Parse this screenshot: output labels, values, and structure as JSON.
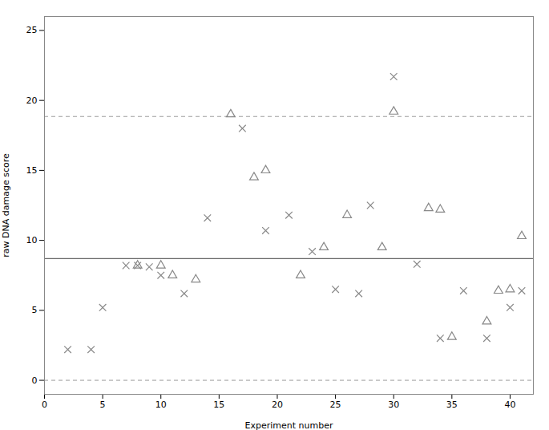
{
  "chart_data": {
    "type": "scatter",
    "xlabel": "Experiment number",
    "ylabel": "raw DNA damage score",
    "xlim": [
      0,
      42
    ],
    "ylim": [
      -1,
      26
    ],
    "xticks": [
      0,
      5,
      10,
      15,
      20,
      25,
      30,
      35,
      40
    ],
    "yticks": [
      0,
      5,
      10,
      15,
      20,
      25
    ],
    "grid": false,
    "series": [
      {
        "marker": "x",
        "color": "#888888",
        "x": [
          2,
          4,
          5,
          7,
          8,
          9,
          10,
          12,
          14,
          17,
          19,
          21,
          23,
          25,
          27,
          28,
          30,
          32,
          34,
          36,
          38,
          40,
          41
        ],
        "y": [
          2.2,
          2.2,
          5.2,
          8.2,
          8.2,
          8.1,
          7.5,
          6.2,
          11.6,
          18.0,
          10.7,
          11.8,
          9.2,
          6.5,
          6.2,
          12.5,
          21.7,
          8.3,
          3.0,
          6.4,
          3.0,
          5.2,
          6.4
        ]
      },
      {
        "marker": "triangle",
        "color": "#888888",
        "x": [
          8,
          10,
          11,
          13,
          16,
          18,
          19,
          22,
          24,
          26,
          29,
          30,
          33,
          34,
          35,
          38,
          39,
          40,
          41
        ],
        "y": [
          8.2,
          8.2,
          7.5,
          7.2,
          19.0,
          14.5,
          15.0,
          7.5,
          9.5,
          11.8,
          9.5,
          19.2,
          12.3,
          12.2,
          3.1,
          4.2,
          6.4,
          6.5,
          10.3
        ]
      }
    ],
    "hlines": [
      {
        "y": 8.7,
        "color": "#666666",
        "line_style": "solid"
      },
      {
        "y": 18.85,
        "color": "#999999",
        "line_style": "dashed"
      },
      {
        "y": 0.0,
        "color": "#999999",
        "line_style": "dashed"
      }
    ]
  }
}
